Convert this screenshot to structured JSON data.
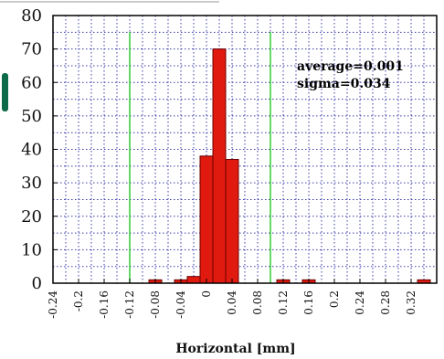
{
  "chart_data": {
    "type": "bar",
    "xlabel": "Horizontal [mm]",
    "ylabel": "",
    "ylim": [
      0,
      80
    ],
    "xlim": [
      -0.24,
      0.36
    ],
    "yticks": [
      "0",
      "10",
      "20",
      "30",
      "40",
      "50",
      "60",
      "70",
      "80"
    ],
    "xticks": [
      "-0.24",
      "-0.2",
      "-0.16",
      "-0.12",
      "-0.08",
      "-0.04",
      "0",
      "0.04",
      "0.08",
      "0.12",
      "0.16",
      "0.2",
      "0.24",
      "0.28",
      "0.32"
    ],
    "bin_width": 0.02,
    "bins": [
      {
        "x0": -0.09,
        "value": 1
      },
      {
        "x0": -0.05,
        "value": 1
      },
      {
        "x0": -0.03,
        "value": 2
      },
      {
        "x0": -0.01,
        "value": 38
      },
      {
        "x0": 0.01,
        "value": 70
      },
      {
        "x0": 0.03,
        "value": 37
      },
      {
        "x0": 0.11,
        "value": 1
      },
      {
        "x0": 0.15,
        "value": 1
      },
      {
        "x0": 0.33,
        "value": 1
      }
    ],
    "reference_lines_x": [
      -0.12,
      0.1
    ],
    "annotations": [
      "average=0.001",
      "sigma=0.034"
    ],
    "grid": true,
    "colors": {
      "bar": "#e01a0f",
      "bar_edge": "#6a0000",
      "reference_line": "#33cc33",
      "grid": "#3a3aa8"
    }
  }
}
